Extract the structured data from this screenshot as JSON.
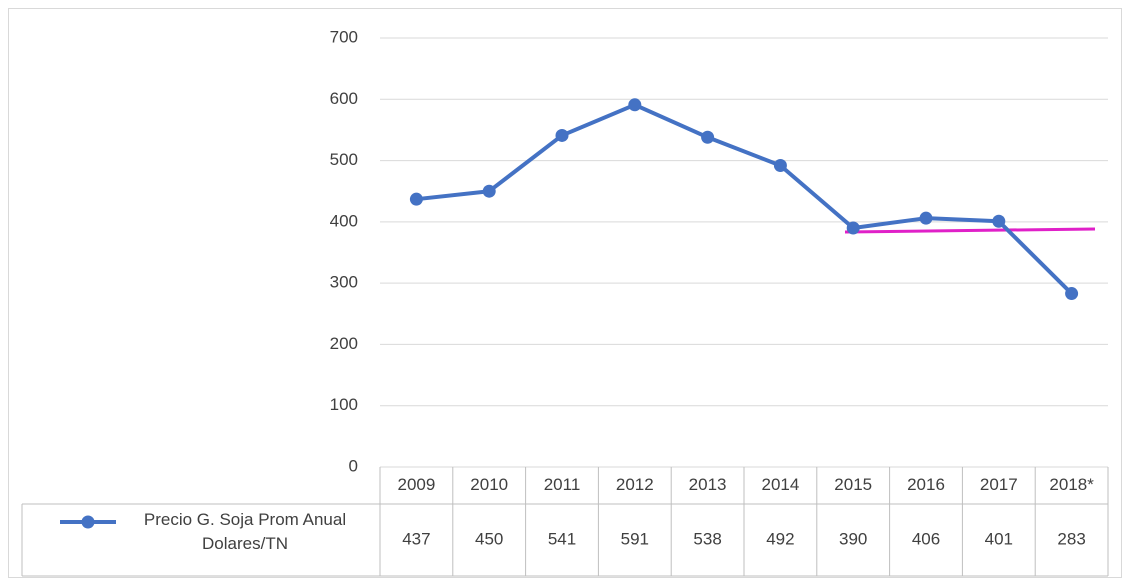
{
  "chart_data": {
    "type": "line",
    "categories": [
      "2009",
      "2010",
      "2011",
      "2012",
      "2013",
      "2014",
      "2015",
      "2016",
      "2017",
      "2018*"
    ],
    "series": [
      {
        "name": "Precio G. Soja Prom Anual Dolares/TN",
        "color": "#4472c4",
        "values": [
          437,
          450,
          541,
          591,
          538,
          492,
          390,
          406,
          401,
          283
        ]
      }
    ],
    "ylim": [
      0,
      700
    ],
    "yticks": [
      0,
      100,
      200,
      300,
      400,
      500,
      600,
      700
    ],
    "grid": true,
    "data_table": true
  }
}
